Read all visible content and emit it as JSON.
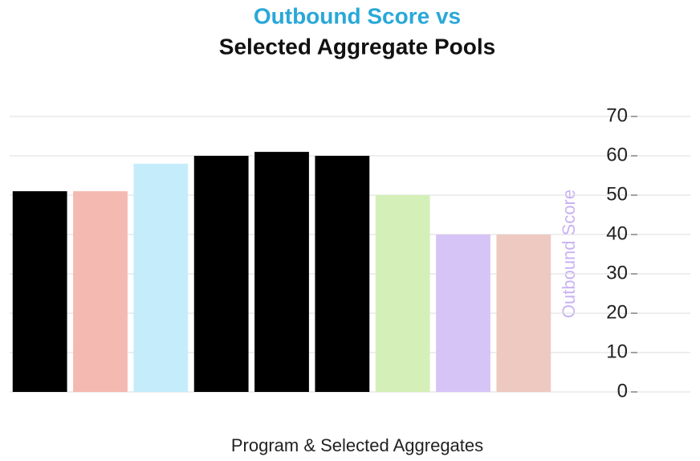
{
  "chart_data": {
    "type": "bar",
    "title": [
      "Outbound Score vs",
      "Selected Aggregate Pools"
    ],
    "y_label": "Outbound Score",
    "x_label": "Program & Selected Aggregates",
    "categories": [
      null,
      null,
      null,
      null,
      null,
      null,
      null,
      null,
      null
    ],
    "values": [
      51,
      51,
      58,
      60,
      61,
      60,
      50,
      40,
      40
    ],
    "colors": [
      "#000000",
      "#f4b9b0",
      "#c5ecfa",
      "#000000",
      "#000000",
      "#000000",
      "#d4f0b8",
      "#d6c4f7",
      "#eec9c2"
    ],
    "ylim": [
      0,
      70
    ],
    "yticks": [
      0,
      10,
      20,
      30,
      40,
      50,
      60,
      70
    ],
    "grid": true
  }
}
